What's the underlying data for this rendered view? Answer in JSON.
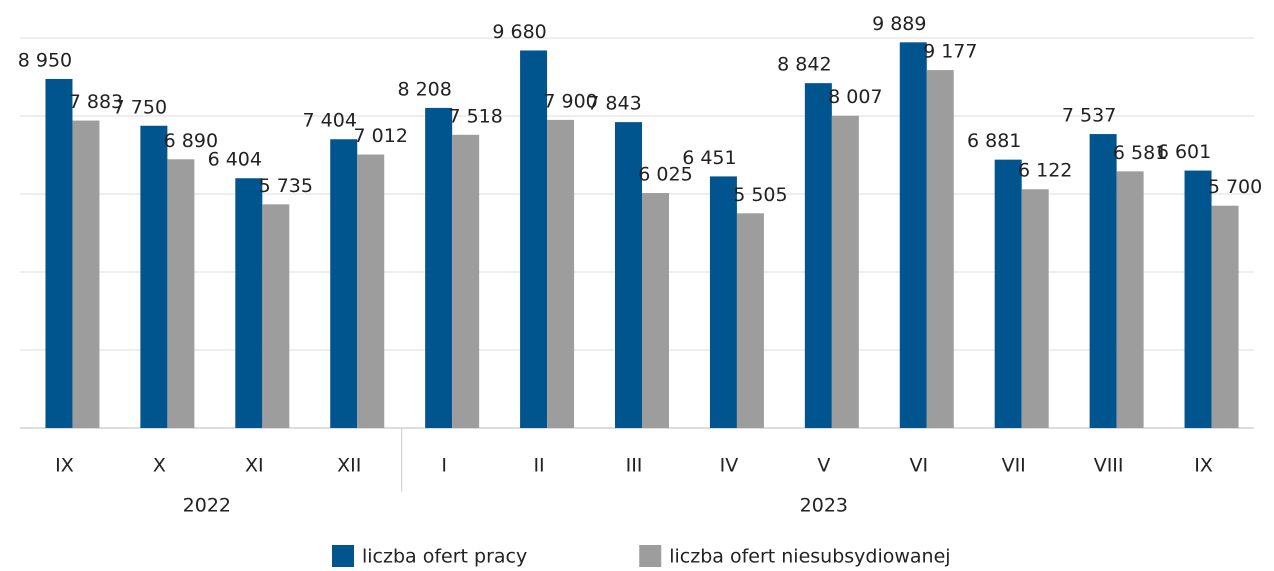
{
  "chart_data": {
    "type": "bar",
    "categories": [
      "IX",
      "X",
      "XI",
      "XII",
      "I",
      "II",
      "III",
      "IV",
      "V",
      "VI",
      "VII",
      "VIII",
      "IX"
    ],
    "category_groups": [
      "2022",
      null,
      null,
      null,
      "2023",
      null,
      null,
      null,
      null,
      null,
      null,
      null,
      null
    ],
    "series": [
      {
        "name": "liczba ofert pracy",
        "color": "#00558f",
        "values": [
          8950,
          7750,
          6404,
          7404,
          8208,
          9680,
          7843,
          6451,
          8842,
          9889,
          6881,
          7537,
          6601
        ],
        "value_labels": [
          "8 950",
          "7 750",
          "6 404",
          "7 404",
          "8 208",
          "9 680",
          "7 843",
          "6 451",
          "8 842",
          "9 889",
          "6 881",
          "7 537",
          "6 601"
        ]
      },
      {
        "name": "liczba ofert niesubsydiowanej",
        "color": "#9d9d9d",
        "values": [
          7883,
          6890,
          5735,
          7012,
          7518,
          7900,
          6025,
          5505,
          8007,
          9177,
          6122,
          6581,
          5700
        ],
        "value_labels": [
          "7 883",
          "6 890",
          "5 735",
          "7 012",
          "7 518",
          "7 900",
          "6 025",
          "5 505",
          "8 007",
          "9 177",
          "6 122",
          "6 581",
          "5 700"
        ]
      }
    ],
    "ylim": [
      0,
      10000
    ],
    "yticks": [
      0,
      2000,
      4000,
      6000,
      8000,
      10000
    ],
    "grid": true,
    "legend": "bottom"
  }
}
